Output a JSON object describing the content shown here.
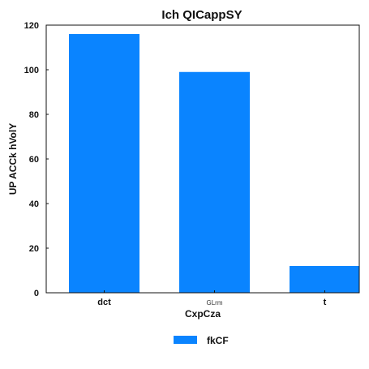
{
  "chart_data": {
    "type": "bar",
    "title": "Ich QICappSY",
    "xlabel": "CxpCza",
    "ylabel": "UP ACCk hVolY",
    "categories": [
      "dct",
      "GLrm",
      "t"
    ],
    "series": [
      {
        "name": "fkCF",
        "values": [
          116,
          99,
          12
        ],
        "color": "#0a84ff"
      }
    ],
    "ylim": [
      0,
      120
    ],
    "yticks": [
      0,
      20,
      40,
      60,
      80,
      100,
      120
    ],
    "grid": false,
    "legend_position": "bottom-center"
  }
}
